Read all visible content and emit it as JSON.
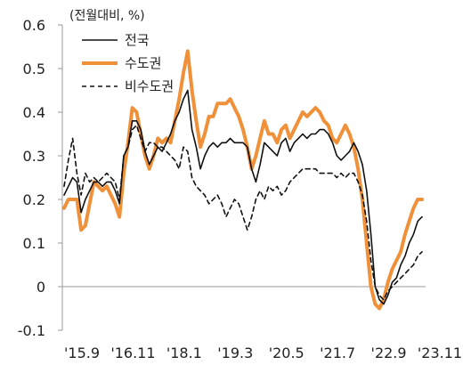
{
  "chart_data": {
    "type": "line",
    "unit_label": "(전월대비, %)",
    "xlabel": "",
    "ylabel": "",
    "ylim": [
      -0.1,
      0.6
    ],
    "yticks": [
      -0.1,
      0,
      0.1,
      0.2,
      0.3,
      0.4,
      0.5,
      0.6
    ],
    "ytick_labels": [
      "-0.1",
      "0",
      "0.1",
      "0.2",
      "0.3",
      "0.4",
      "0.5",
      "0.6"
    ],
    "xticks": [
      "'15.9",
      "'16.11",
      "'18.1",
      "'19.3",
      "'20.5",
      "'21.7",
      "'22.9",
      "'23.11"
    ],
    "grid": false,
    "legend": "top-left",
    "x_start": "2015-09",
    "x_end": "2023-11",
    "series": [
      {
        "name": "전국",
        "color": "#111111",
        "style": "solid",
        "values": [
          0.21,
          0.23,
          0.25,
          0.24,
          0.17,
          0.2,
          0.22,
          0.24,
          0.24,
          0.23,
          0.24,
          0.24,
          0.22,
          0.19,
          0.3,
          0.32,
          0.38,
          0.38,
          0.36,
          0.31,
          0.28,
          0.3,
          0.32,
          0.31,
          0.33,
          0.35,
          0.38,
          0.4,
          0.43,
          0.45,
          0.36,
          0.32,
          0.27,
          0.3,
          0.32,
          0.33,
          0.32,
          0.33,
          0.33,
          0.34,
          0.33,
          0.33,
          0.33,
          0.32,
          0.27,
          0.24,
          0.28,
          0.33,
          0.32,
          0.31,
          0.3,
          0.33,
          0.34,
          0.31,
          0.33,
          0.34,
          0.35,
          0.34,
          0.35,
          0.35,
          0.36,
          0.36,
          0.35,
          0.33,
          0.3,
          0.29,
          0.3,
          0.31,
          0.33,
          0.31,
          0.28,
          0.22,
          0.12,
          0.0,
          -0.03,
          -0.04,
          -0.02,
          0.01,
          0.02,
          0.05,
          0.07,
          0.1,
          0.12,
          0.15,
          0.16
        ]
      },
      {
        "name": "수도권",
        "color": "#f0913a",
        "style": "solid",
        "values": [
          0.18,
          0.2,
          0.2,
          0.2,
          0.13,
          0.14,
          0.19,
          0.24,
          0.23,
          0.22,
          0.23,
          0.21,
          0.19,
          0.16,
          0.26,
          0.33,
          0.41,
          0.4,
          0.35,
          0.3,
          0.27,
          0.3,
          0.34,
          0.33,
          0.34,
          0.33,
          0.38,
          0.43,
          0.49,
          0.54,
          0.45,
          0.38,
          0.32,
          0.35,
          0.39,
          0.39,
          0.42,
          0.42,
          0.42,
          0.43,
          0.41,
          0.39,
          0.36,
          0.32,
          0.27,
          0.3,
          0.34,
          0.38,
          0.35,
          0.35,
          0.33,
          0.36,
          0.37,
          0.34,
          0.36,
          0.38,
          0.4,
          0.39,
          0.4,
          0.41,
          0.4,
          0.38,
          0.37,
          0.34,
          0.33,
          0.35,
          0.37,
          0.35,
          0.32,
          0.27,
          0.2,
          0.1,
          0.0,
          -0.04,
          -0.05,
          -0.03,
          0.01,
          0.04,
          0.06,
          0.08,
          0.12,
          0.15,
          0.18,
          0.2,
          0.2
        ]
      },
      {
        "name": "비수도권",
        "color": "#111111",
        "style": "dashed",
        "values": [
          0.23,
          0.29,
          0.34,
          0.26,
          0.21,
          0.26,
          0.24,
          0.25,
          0.24,
          0.25,
          0.26,
          0.25,
          0.24,
          0.2,
          0.3,
          0.32,
          0.36,
          0.37,
          0.34,
          0.31,
          0.33,
          0.33,
          0.32,
          0.32,
          0.31,
          0.3,
          0.29,
          0.27,
          0.32,
          0.31,
          0.25,
          0.23,
          0.22,
          0.21,
          0.19,
          0.2,
          0.21,
          0.19,
          0.16,
          0.18,
          0.2,
          0.19,
          0.16,
          0.13,
          0.16,
          0.2,
          0.22,
          0.2,
          0.23,
          0.22,
          0.23,
          0.21,
          0.22,
          0.24,
          0.25,
          0.26,
          0.27,
          0.27,
          0.27,
          0.27,
          0.26,
          0.26,
          0.26,
          0.26,
          0.25,
          0.26,
          0.25,
          0.26,
          0.26,
          0.24,
          0.21,
          0.15,
          0.06,
          0.0,
          -0.02,
          -0.03,
          -0.01,
          0.0,
          0.01,
          0.02,
          0.03,
          0.04,
          0.05,
          0.07,
          0.08
        ]
      }
    ]
  }
}
